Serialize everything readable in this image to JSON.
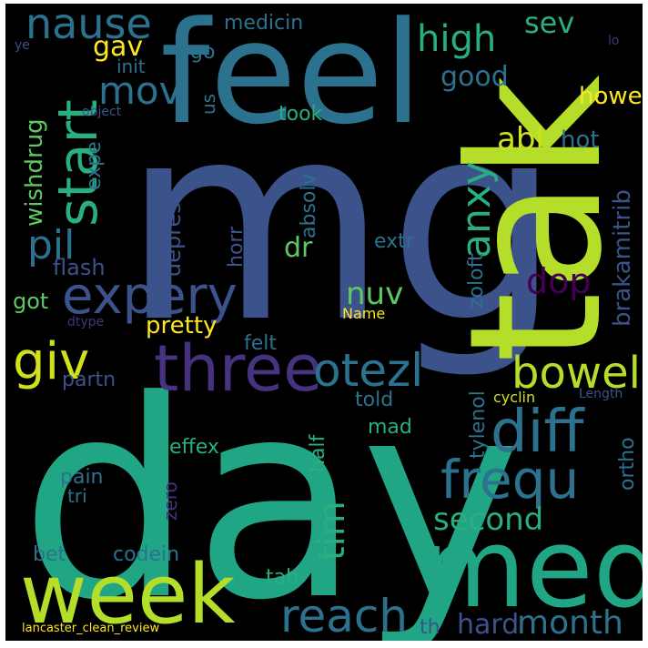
{
  "palette": {
    "background": "#000000",
    "frame": "#ffffff",
    "deep_purple": "#46327e",
    "dark_purple": "#440154",
    "slate_blue": "#3b528b",
    "steel_blue": "#365c8d",
    "teal_blue": "#2c728e",
    "teal": "#21918c",
    "sea_green": "#1fa187",
    "green": "#29af7f",
    "light_green": "#5ec962",
    "lime": "#addc30",
    "yellow": "#fde725"
  },
  "words": [
    {
      "id": "mg",
      "text": "mg",
      "color": "#3b528b"
    },
    {
      "id": "day",
      "text": "day",
      "color": "#21a685"
    },
    {
      "id": "tak",
      "text": "tak",
      "color": "#b5de2b"
    },
    {
      "id": "feel",
      "text": "feel",
      "color": "#2c728e"
    },
    {
      "id": "week",
      "text": "week",
      "color": "#b5de2b"
    },
    {
      "id": "med",
      "text": "med",
      "color": "#21a685"
    },
    {
      "id": "three",
      "text": "three",
      "color": "#46327e"
    },
    {
      "id": "expery",
      "text": "expery",
      "color": "#3b528b"
    },
    {
      "id": "start",
      "text": "start",
      "color": "#29af7f"
    },
    {
      "id": "diff",
      "text": "diff",
      "color": "#2c728e"
    },
    {
      "id": "frequ",
      "text": "frequ",
      "color": "#2c728e"
    },
    {
      "id": "reach",
      "text": "reach",
      "color": "#2c728e"
    },
    {
      "id": "giv",
      "text": "giv",
      "color": "#d0e11c"
    },
    {
      "id": "otezl",
      "text": "otezl",
      "color": "#2c728e"
    },
    {
      "id": "bowel",
      "text": "bowel",
      "color": "#b5de2b"
    },
    {
      "id": "nause",
      "text": "nause",
      "color": "#2c728e"
    },
    {
      "id": "anxy",
      "text": "anxy",
      "color": "#29af7f"
    },
    {
      "id": "pil",
      "text": "pil",
      "color": "#2c728e"
    },
    {
      "id": "mov",
      "text": "mov",
      "color": "#2c728e"
    },
    {
      "id": "high",
      "text": "high",
      "color": "#29af7f"
    },
    {
      "id": "tim",
      "text": "tim",
      "color": "#29af7f"
    },
    {
      "id": "month",
      "text": "month",
      "color": "#2c728e"
    },
    {
      "id": "hard",
      "text": "hard",
      "color": "#3b528b"
    },
    {
      "id": "second",
      "text": "second",
      "color": "#29af7f"
    },
    {
      "id": "nuv",
      "text": "nuv",
      "color": "#5ec962"
    },
    {
      "id": "dop",
      "text": "dop",
      "color": "#440154"
    },
    {
      "id": "abl",
      "text": "abl",
      "color": "#d0e11c"
    },
    {
      "id": "gav",
      "text": "gav",
      "color": "#fde725"
    },
    {
      "id": "sev",
      "text": "sev",
      "color": "#29af7f"
    },
    {
      "id": "good",
      "text": "good",
      "color": "#2c728e"
    },
    {
      "id": "howe",
      "text": "howe",
      "color": "#fde725"
    },
    {
      "id": "hot",
      "text": "hot",
      "color": "#2c728e"
    },
    {
      "id": "brakamitrib",
      "text": "brakamitrib",
      "color": "#3b528b"
    },
    {
      "id": "wishdrug",
      "text": "wishdrug",
      "color": "#5ec962"
    },
    {
      "id": "expe",
      "text": "expe",
      "color": "#2c728e"
    },
    {
      "id": "depress",
      "text": "depress",
      "color": "#3b528b"
    },
    {
      "id": "absolv",
      "text": "absolv",
      "color": "#2c728e"
    },
    {
      "id": "horr",
      "text": "horr",
      "color": "#3b528b"
    },
    {
      "id": "dr",
      "text": "dr",
      "color": "#5ec962"
    },
    {
      "id": "extr",
      "text": "extr",
      "color": "#2c728e"
    },
    {
      "id": "zoloft",
      "text": "zoloft",
      "color": "#2c728e"
    },
    {
      "id": "flash",
      "text": "flash",
      "color": "#3b528b"
    },
    {
      "id": "got",
      "text": "got",
      "color": "#5ec962"
    },
    {
      "id": "pretty",
      "text": "pretty",
      "color": "#fde725"
    },
    {
      "id": "name",
      "text": "Name",
      "color": "#fde725"
    },
    {
      "id": "dtype",
      "text": "dtype",
      "color": "#46327e"
    },
    {
      "id": "felt",
      "text": "felt",
      "color": "#2c728e"
    },
    {
      "id": "partn",
      "text": "partn",
      "color": "#3b528b"
    },
    {
      "id": "told",
      "text": "told",
      "color": "#2c728e"
    },
    {
      "id": "tylenol",
      "text": "tylenol",
      "color": "#2c728e"
    },
    {
      "id": "cyclin",
      "text": "cyclin",
      "color": "#d0e11c"
    },
    {
      "id": "length",
      "text": "Length",
      "color": "#3b528b"
    },
    {
      "id": "mad",
      "text": "mad",
      "color": "#29af7f"
    },
    {
      "id": "half",
      "text": "half",
      "color": "#29af7f"
    },
    {
      "id": "effex",
      "text": "effex",
      "color": "#29af7f"
    },
    {
      "id": "ortho",
      "text": "ortho",
      "color": "#2c728e"
    },
    {
      "id": "pain",
      "text": "pain",
      "color": "#2c728e"
    },
    {
      "id": "tri",
      "text": "tri",
      "color": "#2c728e"
    },
    {
      "id": "zero",
      "text": "zero",
      "color": "#46327e"
    },
    {
      "id": "bet",
      "text": "bet",
      "color": "#2c728e"
    },
    {
      "id": "codein",
      "text": "codein",
      "color": "#2c728e"
    },
    {
      "id": "tab",
      "text": "tab",
      "color": "#29af7f"
    },
    {
      "id": "th",
      "text": "th",
      "color": "#3b528b"
    },
    {
      "id": "medicin",
      "text": "medicin",
      "color": "#2c728e"
    },
    {
      "id": "go",
      "text": "go",
      "color": "#2c728e"
    },
    {
      "id": "init",
      "text": "init",
      "color": "#2c728e"
    },
    {
      "id": "us",
      "text": "us",
      "color": "#2c728e"
    },
    {
      "id": "took",
      "text": "took",
      "color": "#29af7f"
    },
    {
      "id": "ye",
      "text": "ye",
      "color": "#3b528b"
    },
    {
      "id": "object",
      "text": "object",
      "color": "#3b528b"
    },
    {
      "id": "lo",
      "text": "lo",
      "color": "#46327e"
    },
    {
      "id": "lancaster",
      "text": "lancaster_clean_review",
      "color": "#fde725"
    }
  ]
}
